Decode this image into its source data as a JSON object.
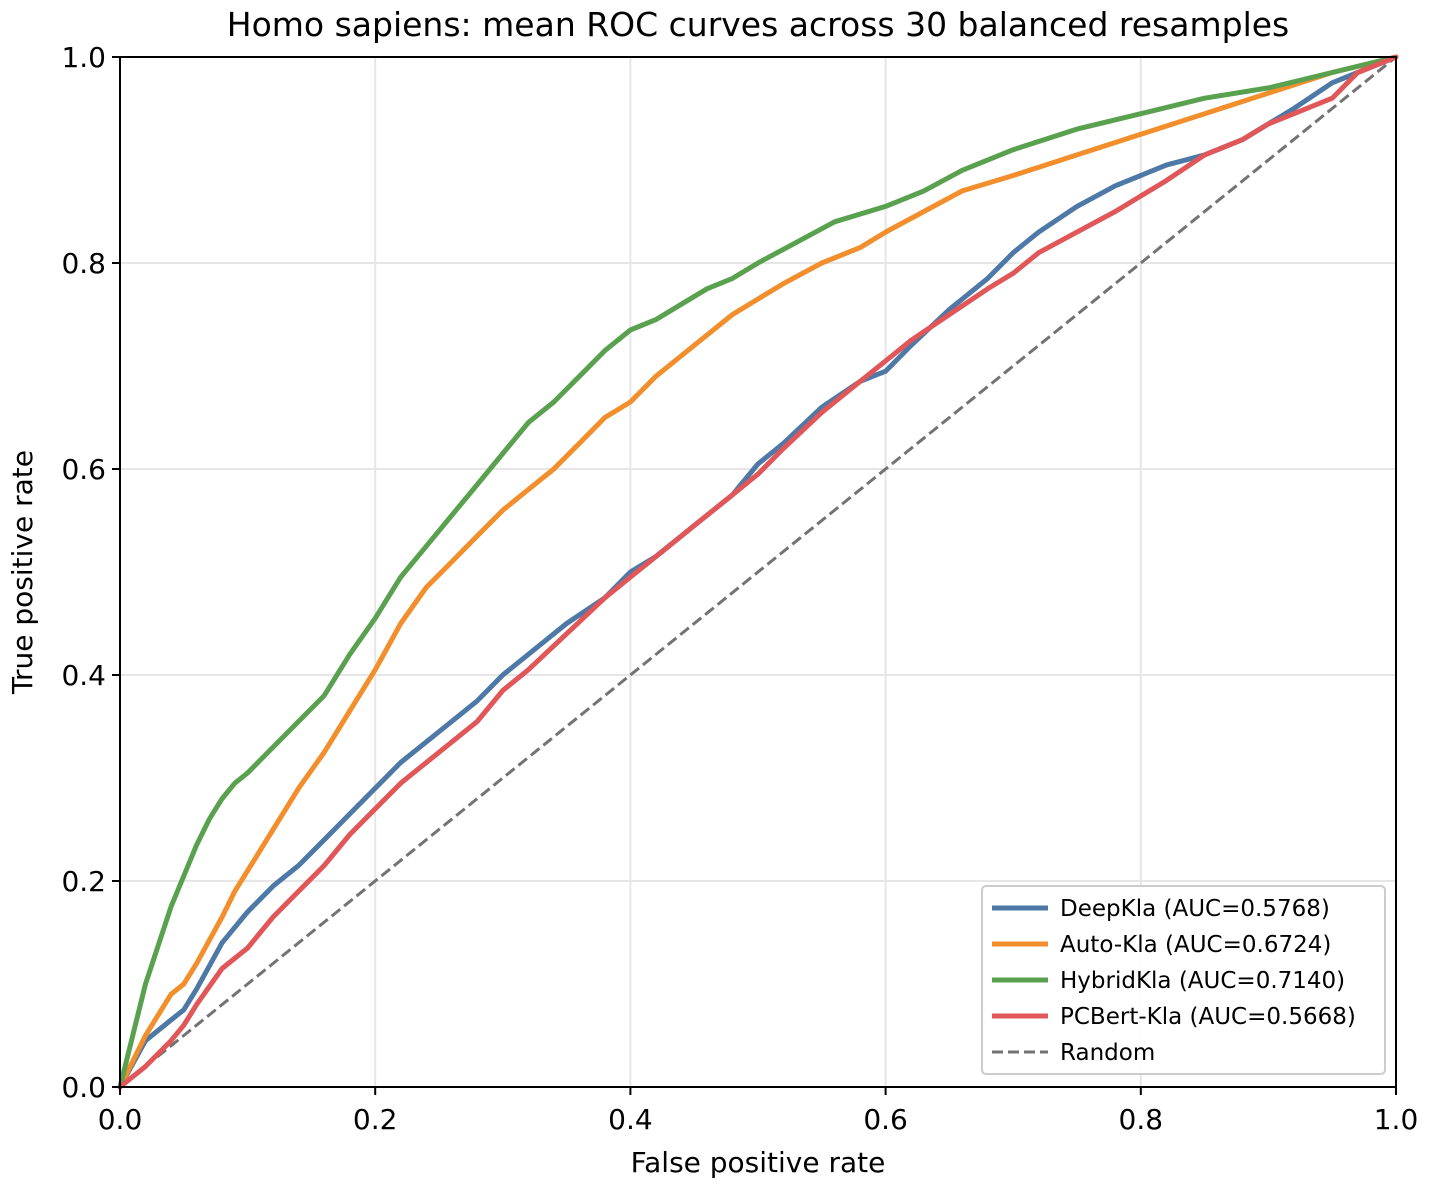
{
  "chart_data": {
    "type": "line",
    "title": "Homo sapiens: mean ROC curves across 30 balanced resamples",
    "xlabel": "False positive rate",
    "ylabel": "True positive rate",
    "xlim": [
      0,
      1
    ],
    "ylim": [
      0,
      1
    ],
    "x_ticks": [
      "0.0",
      "0.2",
      "0.4",
      "0.6",
      "0.8",
      "1.0"
    ],
    "y_ticks": [
      "0.0",
      "0.2",
      "0.4",
      "0.6",
      "0.8",
      "1.0"
    ],
    "grid": true,
    "legend_position": "lower-right",
    "series": [
      {
        "name": "DeepKla (AUC=0.5768)",
        "color": "#4e79a7",
        "style": "solid",
        "x": [
          0,
          0.02,
          0.04,
          0.05,
          0.06,
          0.08,
          0.1,
          0.12,
          0.14,
          0.16,
          0.18,
          0.2,
          0.22,
          0.25,
          0.28,
          0.3,
          0.32,
          0.35,
          0.38,
          0.4,
          0.42,
          0.45,
          0.48,
          0.5,
          0.52,
          0.55,
          0.58,
          0.6,
          0.62,
          0.65,
          0.68,
          0.7,
          0.72,
          0.75,
          0.78,
          0.8,
          0.82,
          0.85,
          0.88,
          0.9,
          0.92,
          0.95,
          0.97,
          1.0
        ],
        "y": [
          0,
          0.045,
          0.065,
          0.075,
          0.095,
          0.14,
          0.17,
          0.195,
          0.215,
          0.24,
          0.265,
          0.29,
          0.315,
          0.345,
          0.375,
          0.4,
          0.42,
          0.45,
          0.475,
          0.5,
          0.515,
          0.545,
          0.575,
          0.605,
          0.625,
          0.66,
          0.685,
          0.695,
          0.72,
          0.755,
          0.785,
          0.81,
          0.83,
          0.855,
          0.875,
          0.885,
          0.895,
          0.905,
          0.92,
          0.935,
          0.95,
          0.975,
          0.985,
          1.0
        ]
      },
      {
        "name": "Auto-Kla (AUC=0.6724)",
        "color": "#f28e2b",
        "style": "solid",
        "x": [
          0,
          0.02,
          0.04,
          0.05,
          0.06,
          0.08,
          0.09,
          0.1,
          0.12,
          0.14,
          0.16,
          0.18,
          0.2,
          0.22,
          0.24,
          0.26,
          0.28,
          0.3,
          0.32,
          0.34,
          0.36,
          0.38,
          0.4,
          0.42,
          0.44,
          0.46,
          0.48,
          0.5,
          0.52,
          0.55,
          0.58,
          0.6,
          0.63,
          0.66,
          0.7,
          0.75,
          0.8,
          0.85,
          0.9,
          0.95,
          1.0
        ],
        "y": [
          0,
          0.05,
          0.09,
          0.1,
          0.12,
          0.165,
          0.19,
          0.21,
          0.25,
          0.29,
          0.325,
          0.365,
          0.405,
          0.45,
          0.485,
          0.51,
          0.535,
          0.56,
          0.58,
          0.6,
          0.625,
          0.65,
          0.665,
          0.69,
          0.71,
          0.73,
          0.75,
          0.765,
          0.78,
          0.8,
          0.815,
          0.83,
          0.85,
          0.87,
          0.885,
          0.905,
          0.925,
          0.945,
          0.965,
          0.985,
          1.0
        ]
      },
      {
        "name": "HybridKla (AUC=0.7140)",
        "color": "#59a14f",
        "style": "solid",
        "x": [
          0,
          0.02,
          0.04,
          0.05,
          0.06,
          0.07,
          0.08,
          0.09,
          0.1,
          0.12,
          0.14,
          0.16,
          0.18,
          0.2,
          0.22,
          0.24,
          0.26,
          0.28,
          0.3,
          0.32,
          0.34,
          0.36,
          0.38,
          0.4,
          0.42,
          0.44,
          0.46,
          0.48,
          0.5,
          0.53,
          0.56,
          0.6,
          0.63,
          0.66,
          0.7,
          0.75,
          0.8,
          0.85,
          0.9,
          0.95,
          1.0
        ],
        "y": [
          0,
          0.1,
          0.175,
          0.205,
          0.235,
          0.26,
          0.28,
          0.295,
          0.305,
          0.33,
          0.355,
          0.38,
          0.42,
          0.455,
          0.495,
          0.525,
          0.555,
          0.585,
          0.615,
          0.645,
          0.665,
          0.69,
          0.715,
          0.735,
          0.745,
          0.76,
          0.775,
          0.785,
          0.8,
          0.82,
          0.84,
          0.855,
          0.87,
          0.89,
          0.91,
          0.93,
          0.945,
          0.96,
          0.97,
          0.985,
          1.0
        ]
      },
      {
        "name": "PCBert-Kla (AUC=0.5668)",
        "color": "#e15759",
        "style": "solid",
        "x": [
          0,
          0.02,
          0.04,
          0.05,
          0.06,
          0.08,
          0.1,
          0.12,
          0.14,
          0.16,
          0.18,
          0.2,
          0.22,
          0.25,
          0.28,
          0.3,
          0.32,
          0.35,
          0.38,
          0.4,
          0.43,
          0.45,
          0.48,
          0.5,
          0.52,
          0.55,
          0.58,
          0.6,
          0.62,
          0.65,
          0.68,
          0.7,
          0.72,
          0.75,
          0.78,
          0.8,
          0.82,
          0.85,
          0.88,
          0.9,
          0.92,
          0.95,
          0.97,
          1.0
        ],
        "y": [
          0,
          0.02,
          0.045,
          0.06,
          0.08,
          0.115,
          0.135,
          0.165,
          0.19,
          0.215,
          0.245,
          0.27,
          0.295,
          0.325,
          0.355,
          0.385,
          0.405,
          0.44,
          0.475,
          0.495,
          0.525,
          0.545,
          0.575,
          0.595,
          0.62,
          0.655,
          0.685,
          0.705,
          0.725,
          0.75,
          0.775,
          0.79,
          0.81,
          0.83,
          0.85,
          0.865,
          0.88,
          0.905,
          0.92,
          0.935,
          0.945,
          0.96,
          0.985,
          1.0
        ]
      },
      {
        "name": "Random",
        "color": "#737373",
        "style": "dashed",
        "x": [
          0,
          1
        ],
        "y": [
          0,
          1
        ]
      }
    ]
  }
}
